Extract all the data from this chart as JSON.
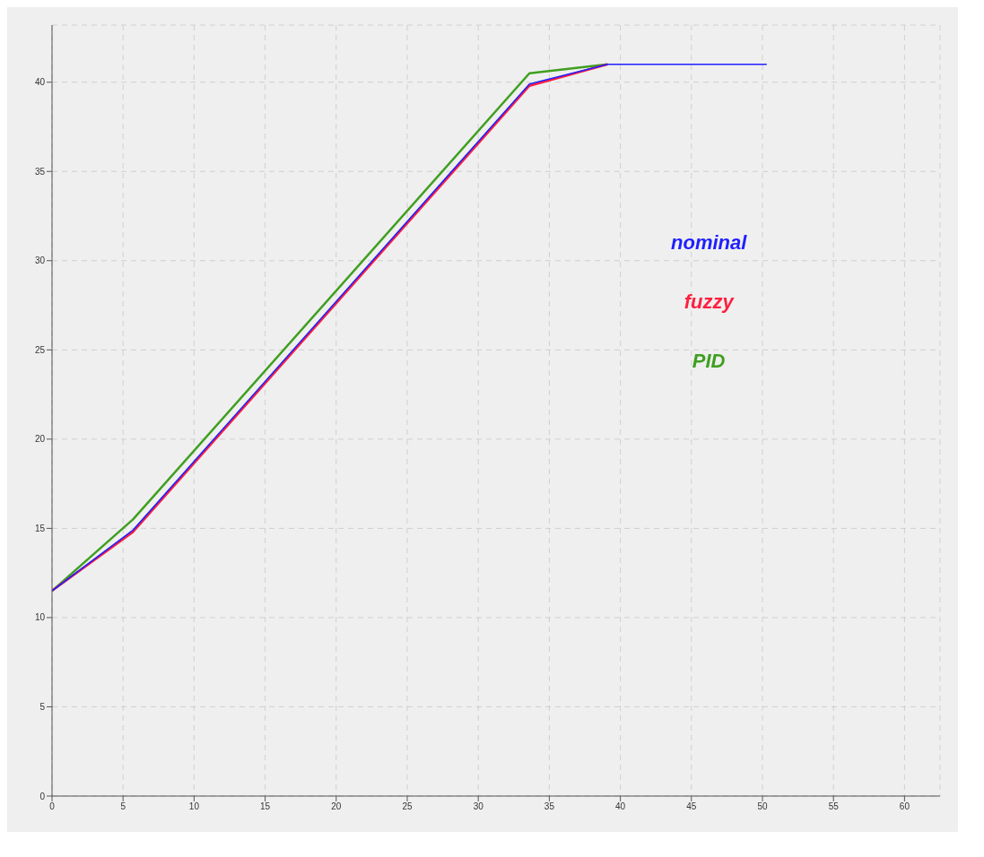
{
  "chart_data": {
    "type": "line",
    "xlim": [
      0,
      62.5
    ],
    "ylim": [
      0,
      43.2
    ],
    "xticks": [
      0,
      5,
      10,
      15,
      20,
      25,
      30,
      35,
      40,
      45,
      50,
      55,
      60
    ],
    "yticks": [
      0,
      5,
      10,
      15,
      20,
      25,
      30,
      35,
      40
    ],
    "grid": true,
    "marker": "none",
    "line_style": "solid",
    "series": [
      {
        "name": "nominal",
        "color": "#1f1fff",
        "x": [
          0,
          5.7,
          33.6,
          39.1,
          50.3
        ],
        "values": [
          11.5,
          14.9,
          39.9,
          41,
          41
        ]
      },
      {
        "name": "fuzzy",
        "color": "#ff1f3f",
        "x": [
          0,
          5.7,
          33.6,
          39.1
        ],
        "values": [
          11.5,
          14.8,
          39.8,
          41
        ]
      },
      {
        "name": "PID",
        "color": "#3f9f1f",
        "x": [
          0,
          5.7,
          33.6,
          39.1
        ],
        "values": [
          11.5,
          15.5,
          40.5,
          41
        ]
      }
    ]
  }
}
